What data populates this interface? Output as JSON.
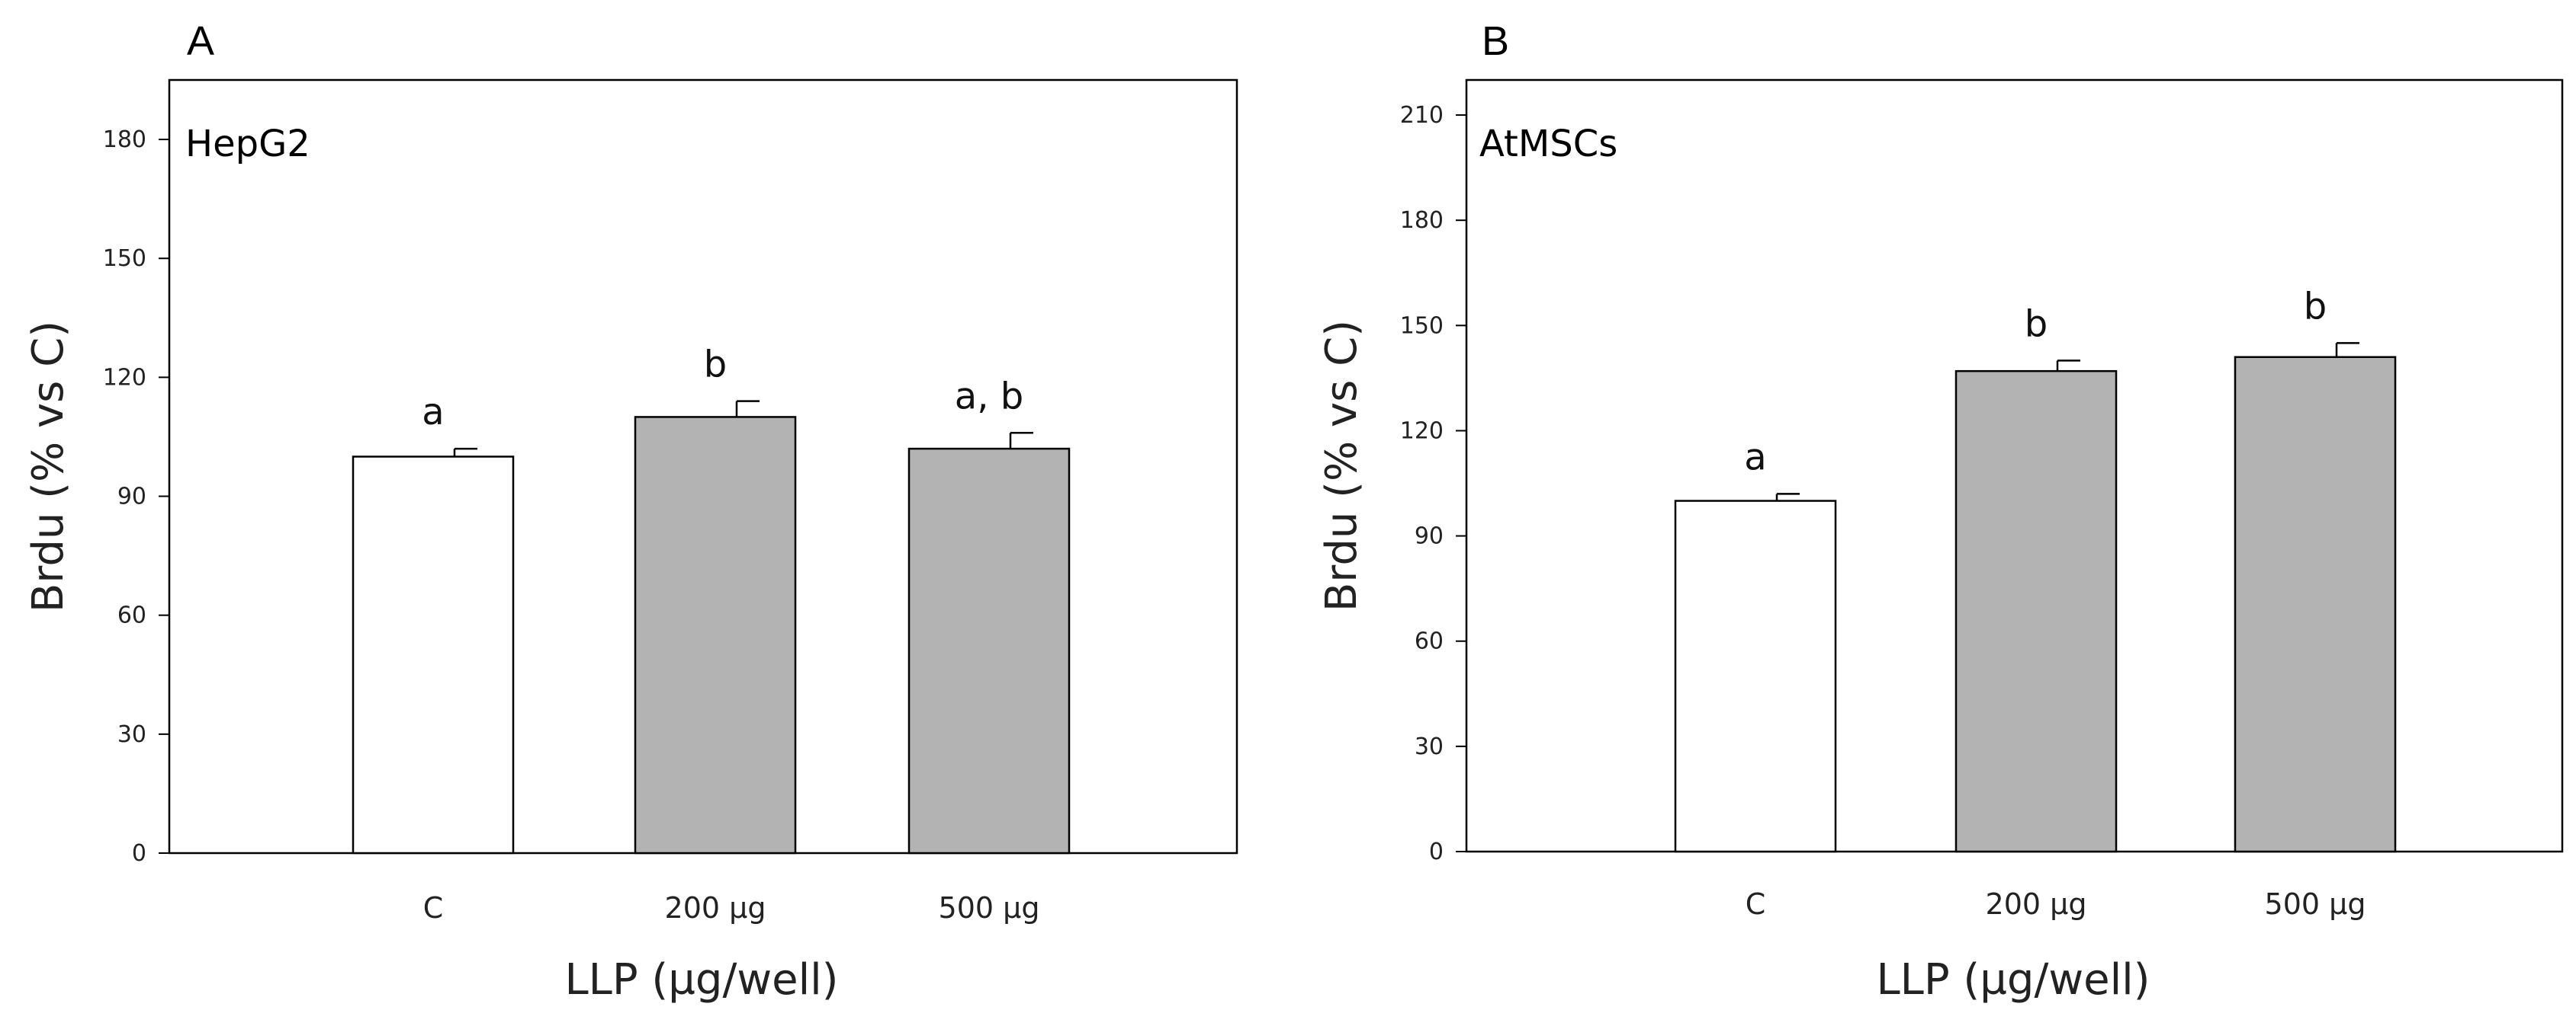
{
  "chart_data": [
    {
      "type": "bar",
      "panel": "A",
      "cell_line": "HepG2",
      "categories": [
        "C",
        "200 µg",
        "500 µg"
      ],
      "values": [
        100,
        110,
        102
      ],
      "errors": [
        2,
        4,
        4
      ],
      "significance": [
        "a",
        "b",
        "a, b"
      ],
      "bar_colors": [
        "#ffffff",
        "#b3b3b3",
        "#b3b3b3"
      ],
      "ylabel": "Brdu (% vs C)",
      "xlabel": "LLP (µg/well)",
      "ylim": [
        0,
        195
      ],
      "yticks": [
        0,
        30,
        60,
        90,
        120,
        150,
        180
      ]
    },
    {
      "type": "bar",
      "panel": "B",
      "cell_line": "AtMSCs",
      "categories": [
        "C",
        "200 µg",
        "500 µg"
      ],
      "values": [
        100,
        137,
        141
      ],
      "errors": [
        2,
        3,
        4
      ],
      "significance": [
        "a",
        "b",
        "b"
      ],
      "bar_colors": [
        "#ffffff",
        "#b3b3b3",
        "#b3b3b3"
      ],
      "ylabel": "Brdu (% vs C)",
      "xlabel": "LLP (µg/well)",
      "ylim": [
        0,
        220
      ],
      "yticks": [
        0,
        30,
        60,
        90,
        120,
        150,
        180,
        210
      ]
    }
  ]
}
